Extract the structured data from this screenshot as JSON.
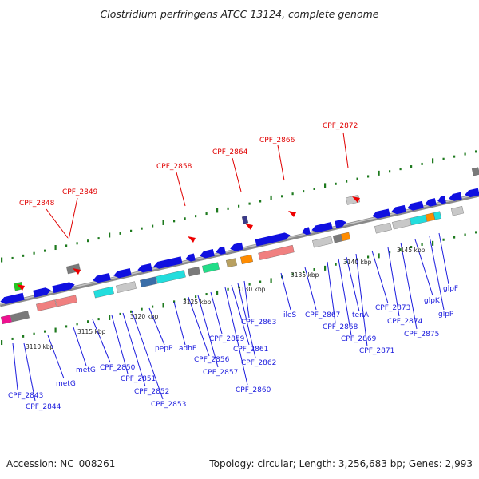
{
  "title": "Clostridium perfringens ATCC 13124, complete genome",
  "footer": {
    "accession": "Accession: NC_008261",
    "topology": "Topology: circular; Length: 3,256,683 bp; Genes: 2,993"
  },
  "colors": {
    "red_label": "#e00000",
    "blue_label": "#1a1add",
    "backbone": "#8a8a8a",
    "tick": "#1e7a1e",
    "gene_blue": "#1010e0"
  },
  "kbp_markers": [
    {
      "id": "k3110",
      "text": "3110 kbp"
    },
    {
      "id": "k3115",
      "text": "3115 kbp"
    },
    {
      "id": "k3120",
      "text": "3120 kbp"
    },
    {
      "id": "k3125",
      "text": "3125 kbp"
    },
    {
      "id": "k3130",
      "text": "3130 kbp"
    },
    {
      "id": "k3135",
      "text": "3135 kbp"
    },
    {
      "id": "k3140",
      "text": "3140 kbp"
    },
    {
      "id": "k3145",
      "text": "3145 kbp"
    }
  ],
  "red_labels": [
    {
      "id": "r2848",
      "text": "CPF_2848"
    },
    {
      "id": "r2849",
      "text": "CPF_2849"
    },
    {
      "id": "r2858",
      "text": "CPF_2858"
    },
    {
      "id": "r2864",
      "text": "CPF_2864"
    },
    {
      "id": "r2866",
      "text": "CPF_2866"
    },
    {
      "id": "r2872",
      "text": "CPF_2872"
    }
  ],
  "blue_labels": [
    {
      "id": "b2843",
      "text": "CPF_2843"
    },
    {
      "id": "b2844",
      "text": "CPF_2844"
    },
    {
      "id": "bmetG1",
      "text": "metG"
    },
    {
      "id": "bmetG2",
      "text": "metG"
    },
    {
      "id": "b2850",
      "text": "CPF_2850"
    },
    {
      "id": "b2851",
      "text": "CPF_2851"
    },
    {
      "id": "b2852",
      "text": "CPF_2852"
    },
    {
      "id": "b2853",
      "text": "CPF_2853"
    },
    {
      "id": "bpepP",
      "text": "pepP"
    },
    {
      "id": "badhE",
      "text": "adhE"
    },
    {
      "id": "b2856",
      "text": "CPF_2856"
    },
    {
      "id": "b2857",
      "text": "CPF_2857"
    },
    {
      "id": "b2859",
      "text": "CPF_2859"
    },
    {
      "id": "b2860",
      "text": "CPF_2860"
    },
    {
      "id": "b2861",
      "text": "CPF_2861"
    },
    {
      "id": "b2862",
      "text": "CPF_2862"
    },
    {
      "id": "b2863",
      "text": "CPF_2863"
    },
    {
      "id": "bileS",
      "text": "ileS"
    },
    {
      "id": "b2867",
      "text": "CPF_2867"
    },
    {
      "id": "b2868",
      "text": "CPF_2868"
    },
    {
      "id": "b2869",
      "text": "CPF_2869"
    },
    {
      "id": "btenA",
      "text": "tenA"
    },
    {
      "id": "b2871",
      "text": "CPF_2871"
    },
    {
      "id": "b2873",
      "text": "CPF_2873"
    },
    {
      "id": "b2874",
      "text": "CPF_2874"
    },
    {
      "id": "b2875",
      "text": "CPF_2875"
    },
    {
      "id": "bglpK",
      "text": "glpK"
    },
    {
      "id": "bglpP",
      "text": "glpP"
    },
    {
      "id": "bglpF",
      "text": "glpF"
    }
  ]
}
